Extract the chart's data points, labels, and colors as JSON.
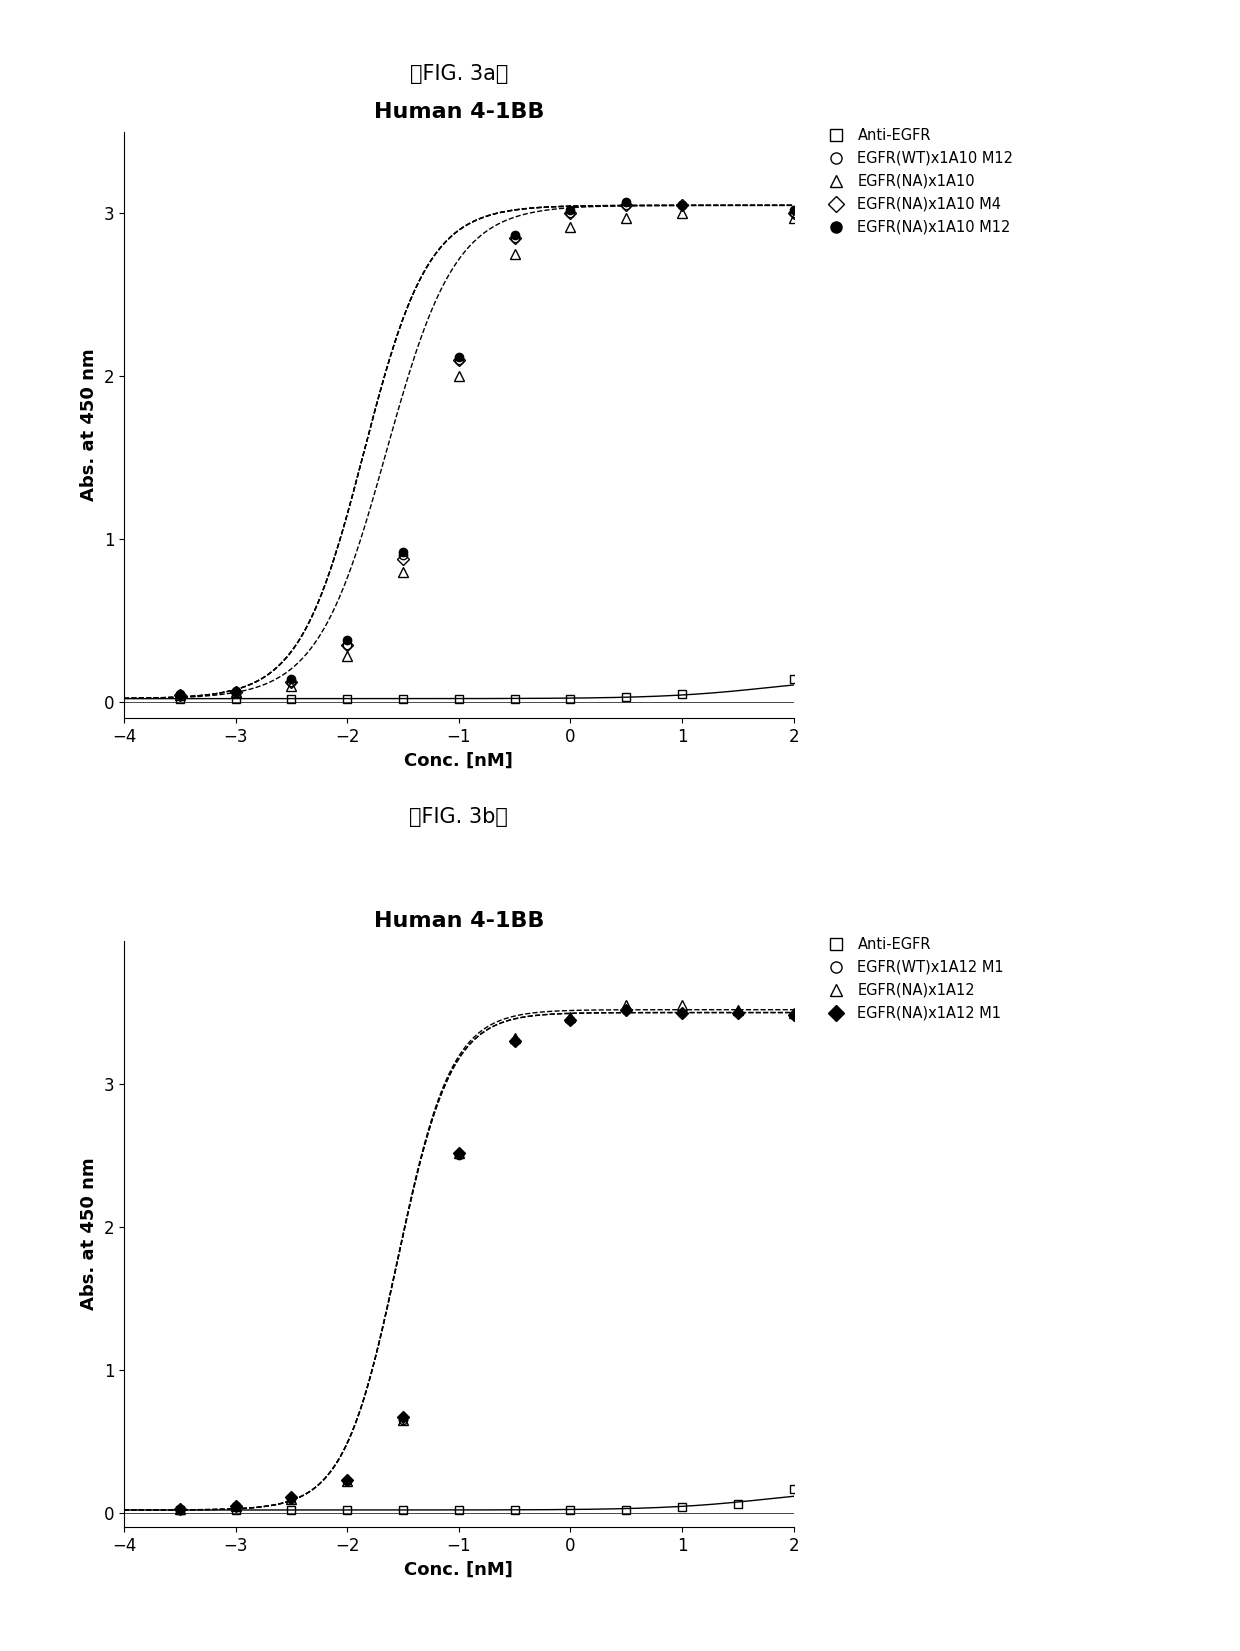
{
  "fig_label_a": "「FIG. 3a」",
  "fig_label_b": "「FIG. 3b」",
  "title_a": "Human 4-1BB",
  "title_b": "Human 4-1BB",
  "xlabel": "Conc. [nM]",
  "ylabel": "Abs. at 450 nm",
  "xlim": [
    -4,
    2
  ],
  "xticks": [
    -4,
    -3,
    -2,
    -1,
    0,
    1,
    2
  ],
  "background_color": "#ffffff",
  "title_fontsize": 16,
  "label_fontsize": 13,
  "tick_fontsize": 12,
  "fig_label_fontsize": 15,
  "panel_a": {
    "ylim": [
      -0.1,
      3.5
    ],
    "yticks": [
      0,
      1,
      2,
      3
    ],
    "series": [
      {
        "label": "Anti-EGFR",
        "ec50_log": 1.8,
        "top": 0.16,
        "bottom": 0.02,
        "hill": 0.9,
        "marker": "s",
        "linestyle": "-",
        "fillstyle": "none",
        "markersize": 6,
        "data_x": [
          -3.5,
          -3.0,
          -2.5,
          -2.0,
          -1.5,
          -1.0,
          -0.5,
          0.0,
          0.5,
          1.0,
          2.0
        ],
        "data_y": [
          0.02,
          0.02,
          0.02,
          0.02,
          0.02,
          0.02,
          0.02,
          0.02,
          0.03,
          0.05,
          0.14
        ]
      },
      {
        "label": "EGFR(WT)x1A10 M12",
        "ec50_log": -1.85,
        "top": 3.05,
        "bottom": 0.02,
        "hill": 1.5,
        "marker": "o",
        "linestyle": "--",
        "fillstyle": "none",
        "markersize": 6,
        "data_x": [
          -3.5,
          -3.0,
          -2.5,
          -2.0,
          -1.5,
          -1.0,
          -0.5,
          0.0,
          0.5,
          1.0,
          2.0
        ],
        "data_y": [
          0.04,
          0.06,
          0.12,
          0.35,
          0.9,
          2.1,
          2.85,
          3.0,
          3.05,
          3.05,
          3.0
        ]
      },
      {
        "label": "EGFR(NA)x1A10",
        "ec50_log": -1.65,
        "top": 3.05,
        "bottom": 0.02,
        "hill": 1.4,
        "marker": "^",
        "linestyle": "--",
        "fillstyle": "none",
        "markersize": 7,
        "data_x": [
          -3.5,
          -3.0,
          -2.5,
          -2.0,
          -1.5,
          -1.0,
          -0.5,
          0.0,
          0.5,
          1.0,
          2.0
        ],
        "data_y": [
          0.04,
          0.06,
          0.1,
          0.28,
          0.8,
          2.0,
          2.75,
          2.92,
          2.97,
          3.0,
          2.97
        ]
      },
      {
        "label": "EGFR(NA)x1A10 M4",
        "ec50_log": -1.85,
        "top": 3.05,
        "bottom": 0.02,
        "hill": 1.5,
        "marker": "D",
        "linestyle": "--",
        "fillstyle": "none",
        "markersize": 6,
        "data_x": [
          -3.5,
          -3.0,
          -2.5,
          -2.0,
          -1.5,
          -1.0,
          -0.5,
          0.0,
          0.5,
          1.0,
          2.0
        ],
        "data_y": [
          0.04,
          0.06,
          0.12,
          0.35,
          0.88,
          2.1,
          2.85,
          3.0,
          3.05,
          3.05,
          3.0
        ]
      },
      {
        "label": "EGFR(NA)x1A10 M12",
        "ec50_log": -1.85,
        "top": 3.05,
        "bottom": 0.02,
        "hill": 1.5,
        "marker": "o",
        "linestyle": "--",
        "fillstyle": "full",
        "markersize": 6,
        "data_x": [
          -3.5,
          -3.0,
          -2.5,
          -2.0,
          -1.5,
          -1.0,
          -0.5,
          0.0,
          0.5,
          1.0,
          2.0
        ],
        "data_y": [
          0.05,
          0.07,
          0.14,
          0.38,
          0.92,
          2.12,
          2.87,
          3.02,
          3.07,
          3.05,
          3.02
        ]
      }
    ]
  },
  "panel_b": {
    "ylim": [
      -0.1,
      4.0
    ],
    "yticks": [
      0,
      1,
      2,
      3
    ],
    "series": [
      {
        "label": "Anti-EGFR",
        "ec50_log": 1.8,
        "top": 0.18,
        "bottom": 0.02,
        "hill": 0.9,
        "marker": "s",
        "linestyle": "-",
        "fillstyle": "none",
        "markersize": 6,
        "data_x": [
          -3.5,
          -3.0,
          -2.5,
          -2.0,
          -1.5,
          -1.0,
          -0.5,
          0.0,
          0.5,
          1.0,
          1.5,
          2.0
        ],
        "data_y": [
          0.02,
          0.02,
          0.02,
          0.02,
          0.02,
          0.02,
          0.02,
          0.02,
          0.02,
          0.04,
          0.06,
          0.17
        ]
      },
      {
        "label": "EGFR(WT)x1A12 M1",
        "ec50_log": -1.55,
        "top": 3.5,
        "bottom": 0.02,
        "hill": 1.8,
        "marker": "o",
        "linestyle": "--",
        "fillstyle": "none",
        "markersize": 6,
        "data_x": [
          -3.5,
          -3.0,
          -2.5,
          -2.0,
          -1.5,
          -1.0,
          -0.5,
          0.0,
          0.5,
          1.0,
          1.5,
          2.0
        ],
        "data_y": [
          0.03,
          0.05,
          0.1,
          0.22,
          0.65,
          2.5,
          3.3,
          3.45,
          3.52,
          3.5,
          3.5,
          3.48
        ]
      },
      {
        "label": "EGFR(NA)x1A12",
        "ec50_log": -1.55,
        "top": 3.52,
        "bottom": 0.02,
        "hill": 1.8,
        "marker": "^",
        "linestyle": "--",
        "fillstyle": "none",
        "markersize": 7,
        "data_x": [
          -3.5,
          -3.0,
          -2.5,
          -2.0,
          -1.5,
          -1.0,
          -0.5,
          0.0,
          0.5,
          1.0,
          1.5,
          2.0
        ],
        "data_y": [
          0.03,
          0.05,
          0.1,
          0.22,
          0.65,
          2.52,
          3.32,
          3.47,
          3.55,
          3.55,
          3.52,
          3.5
        ]
      },
      {
        "label": "EGFR(NA)x1A12 M1",
        "ec50_log": -1.55,
        "top": 3.5,
        "bottom": 0.02,
        "hill": 1.8,
        "marker": "D",
        "linestyle": "--",
        "fillstyle": "full",
        "markersize": 6,
        "data_x": [
          -3.5,
          -3.0,
          -2.5,
          -2.0,
          -1.5,
          -1.0,
          -0.5,
          0.0,
          0.5,
          1.0,
          1.5,
          2.0
        ],
        "data_y": [
          0.03,
          0.05,
          0.11,
          0.23,
          0.67,
          2.52,
          3.3,
          3.45,
          3.52,
          3.5,
          3.5,
          3.48
        ]
      }
    ]
  }
}
